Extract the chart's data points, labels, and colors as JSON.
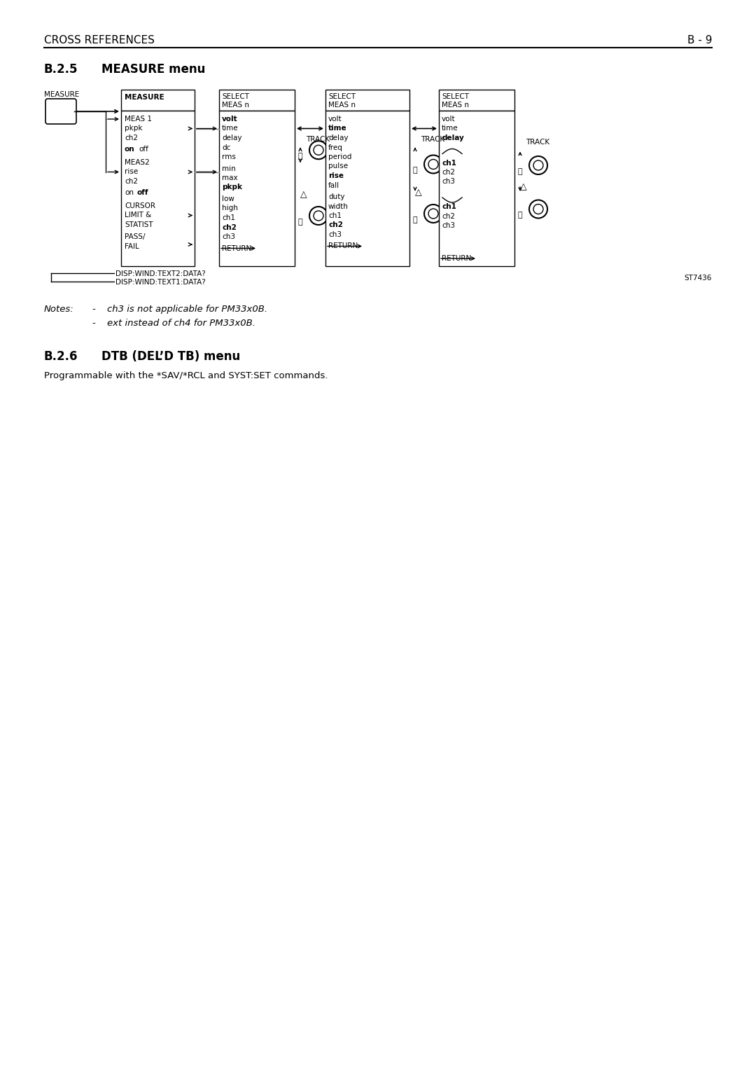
{
  "page_header_left": "CROSS REFERENCES",
  "page_header_right": "B - 9",
  "section25_num": "B.2.5",
  "section25_title": "MEASURE menu",
  "section26_num": "B.2.6",
  "section26_title": "DTB (DEL’D TB) menu",
  "section26_body": "Programmable with the *SAV/*RCL and SYST:SET commands.",
  "notes_label": "Notes:",
  "notes": [
    "ch3 is not applicable for PM33x0B.",
    "ext instead of ch4 for PM33x0B."
  ],
  "stamp": "ST7436",
  "disp_labels": [
    "DISP:WIND:TEXT2:DATA?",
    "DISP:WIND:TEXT1:DATA?"
  ],
  "bg_color": "#ffffff",
  "text_color": "#000000"
}
